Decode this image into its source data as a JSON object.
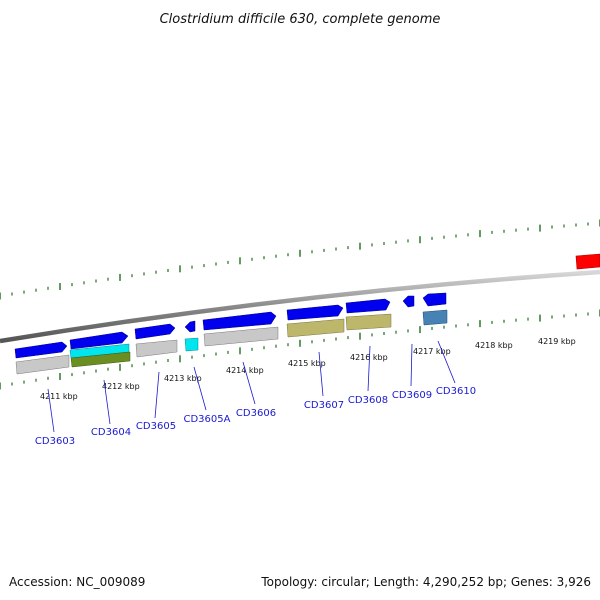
{
  "title": "Clostridium difficile 630, complete genome",
  "footer": {
    "accession": "Accession: NC_009089",
    "summary": "Topology: circular; Length: 4,290,252 bp; Genes: 3,926"
  },
  "colors": {
    "cds": "#0000ee",
    "cds_highlight": "#00e5ee",
    "gray_feature": "#c0c0c0",
    "olive_feature": "#6b8e23",
    "khaki_feature": "#bdb76b",
    "steel_feature": "#4682b4",
    "red_feature": "#ff0000",
    "tick": "#207020",
    "backbone": "#7a7a7a",
    "gene_label": "#1a1ad0"
  },
  "axis_labels": [
    "4211 kbp",
    "4212 kbp",
    "4213 kbp",
    "4214 kbp",
    "4215 kbp",
    "4216 kbp",
    "4217 kbp",
    "4218 kbp",
    "4219 kbp"
  ],
  "genes": [
    "CD3603",
    "CD3604",
    "CD3605",
    "CD3605A",
    "CD3606",
    "CD3607",
    "CD3608",
    "CD3609",
    "CD3610"
  ]
}
